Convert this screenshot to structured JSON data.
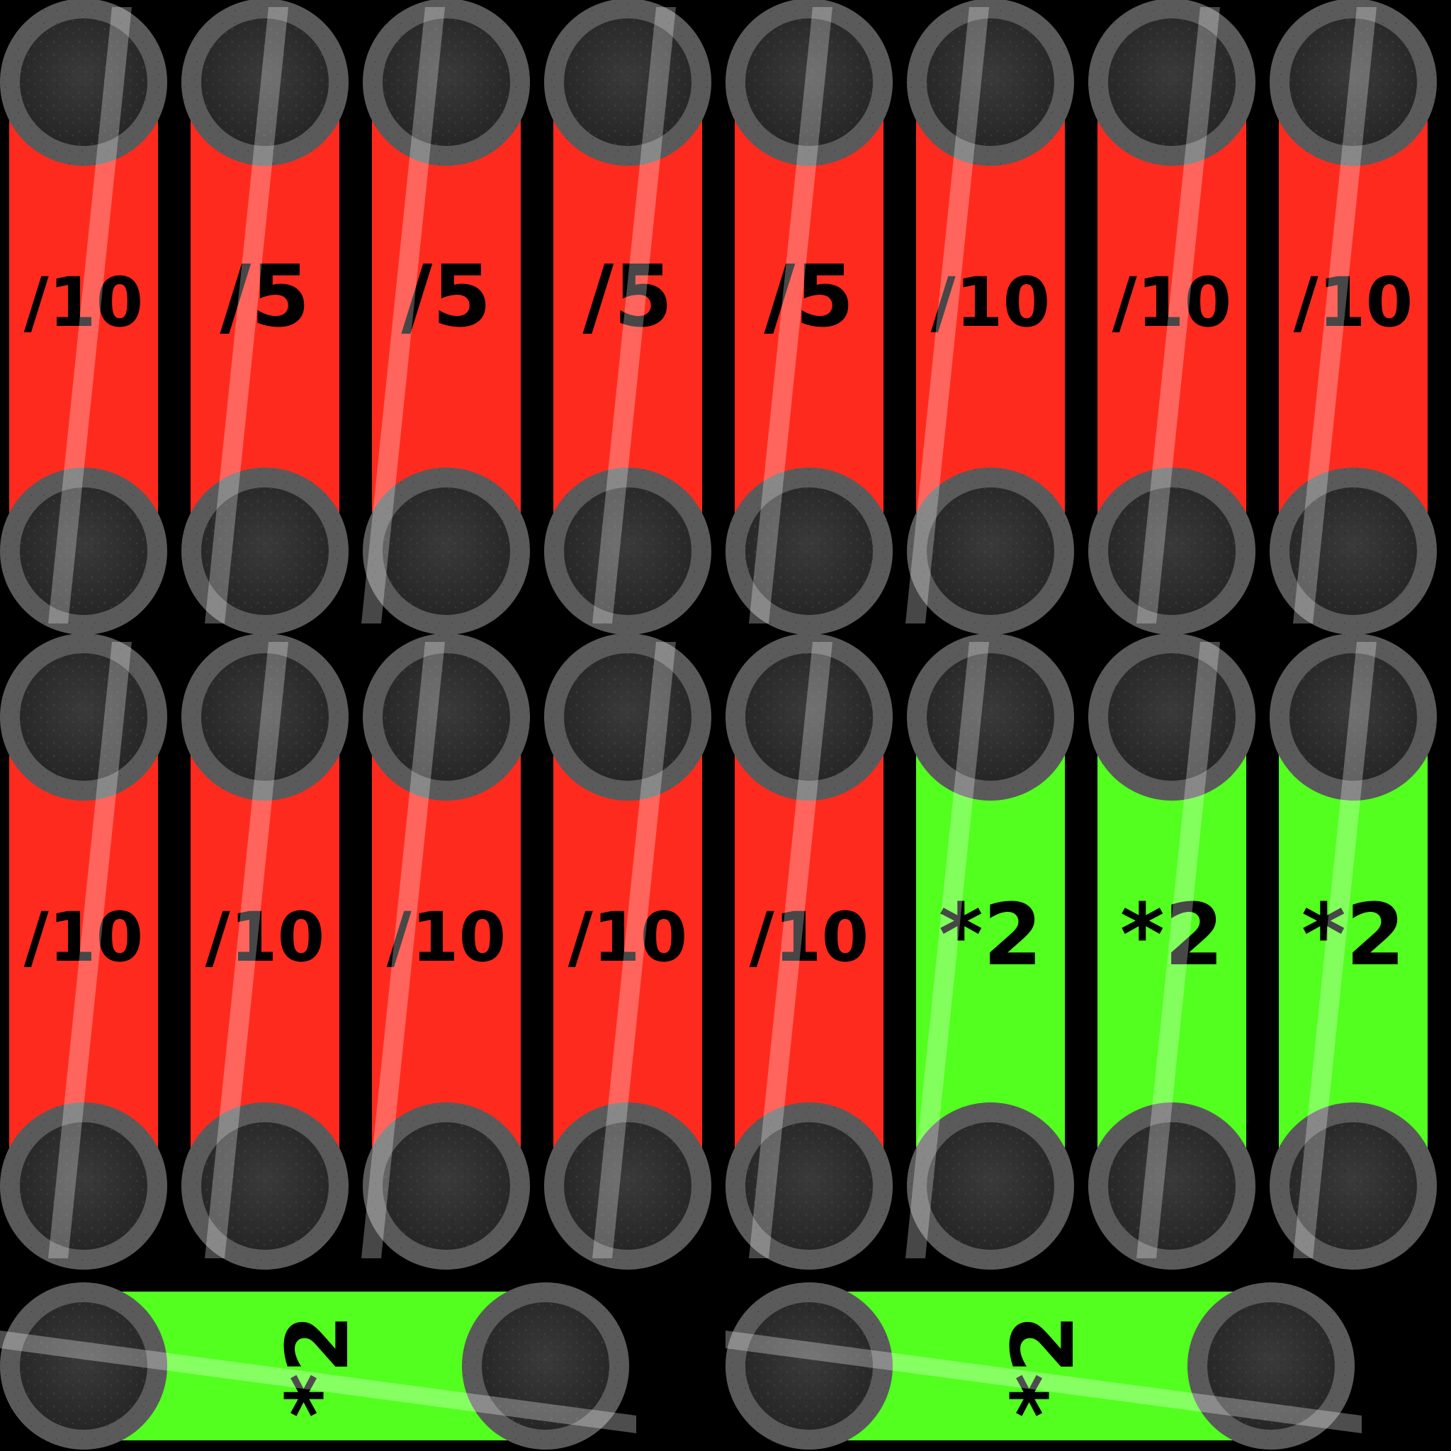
{
  "palette": {
    "background": "#000000",
    "red": "#ff2a1e",
    "green": "#52ff1f",
    "cap_outer": "#5a5a5a",
    "cap_inner": "#2e2e2e",
    "text": "#000000",
    "shine": "#ffffff"
  },
  "rows": [
    {
      "orientation": "vertical",
      "tiles": [
        {
          "label": "/10",
          "color": "red"
        },
        {
          "label": "/5",
          "color": "red"
        },
        {
          "label": "/5",
          "color": "red"
        },
        {
          "label": "/5",
          "color": "red"
        },
        {
          "label": "/5",
          "color": "red"
        },
        {
          "label": "/10",
          "color": "red"
        },
        {
          "label": "/10",
          "color": "red"
        },
        {
          "label": "/10",
          "color": "red"
        }
      ]
    },
    {
      "orientation": "vertical",
      "tiles": [
        {
          "label": "/10",
          "color": "red"
        },
        {
          "label": "/10",
          "color": "red"
        },
        {
          "label": "/10",
          "color": "red"
        },
        {
          "label": "/10",
          "color": "red"
        },
        {
          "label": "/10",
          "color": "red"
        },
        {
          "label": "*2",
          "color": "green"
        },
        {
          "label": "*2",
          "color": "green"
        },
        {
          "label": "*2",
          "color": "green"
        }
      ]
    },
    {
      "orientation": "horizontal",
      "tiles": [
        {
          "label": "*2",
          "color": "green"
        },
        {
          "label": "*2",
          "color": "green"
        }
      ]
    }
  ]
}
